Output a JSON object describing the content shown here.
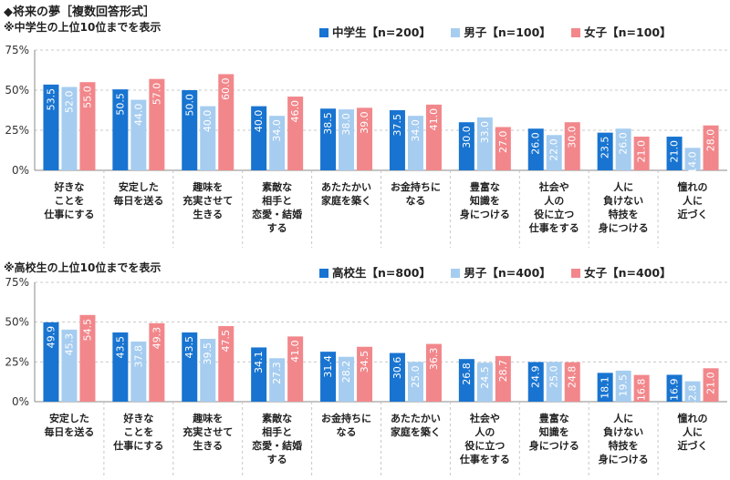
{
  "title": "◆将来の夢［複数回答形式］",
  "colors": {
    "series1": "#1874d0",
    "series2": "#a6cdf0",
    "series3": "#f2878b",
    "grid": "#c8c8c8"
  },
  "chart_data": [
    {
      "type": "bar",
      "subtitle": "※中学生の上位10位までを表示",
      "ylim": [
        0,
        75
      ],
      "yticks": [
        "0%",
        "25%",
        "50%",
        "75%"
      ],
      "legend": [
        "中学生【n=200】",
        "男子【n=100】",
        "女子【n=100】"
      ],
      "categories": [
        "好きな\nことを\n仕事にする",
        "安定した\n毎日を送る",
        "趣味を\n充実させて\n生きる",
        "素敵な\n相手と\n恋愛・結婚\nする",
        "あたたかい\n家庭を築く",
        "お金持ちに\nなる",
        "豊富な\n知識を\n身につける",
        "社会や\n人の\n役に立つ\n仕事をする",
        "人に\n負けない\n特技を\n身につける",
        "憧れの\n人に\n近づく"
      ],
      "series": [
        {
          "name": "中学生【n=200】",
          "values": [
            53.5,
            50.5,
            50.0,
            40.0,
            38.5,
            37.5,
            30.0,
            26.0,
            23.5,
            21.0
          ]
        },
        {
          "name": "男子【n=100】",
          "values": [
            52.0,
            44.0,
            40.0,
            34.0,
            38.0,
            34.0,
            33.0,
            22.0,
            26.0,
            14.0
          ]
        },
        {
          "name": "女子【n=100】",
          "values": [
            55.0,
            57.0,
            60.0,
            46.0,
            39.0,
            41.0,
            27.0,
            30.0,
            21.0,
            28.0
          ]
        }
      ]
    },
    {
      "type": "bar",
      "subtitle": "※高校生の上位10位までを表示",
      "ylim": [
        0,
        75
      ],
      "yticks": [
        "0%",
        "25%",
        "50%",
        "75%"
      ],
      "legend": [
        "高校生【n=800】",
        "男子【n=400】",
        "女子【n=400】"
      ],
      "categories": [
        "安定した\n毎日を送る",
        "好きな\nことを\n仕事にする",
        "趣味を\n充実させて\n生きる",
        "素敵な\n相手と\n恋愛・結婚\nする",
        "お金持ちに\nなる",
        "あたたかい\n家庭を築く",
        "社会や\n人の\n役に立つ\n仕事をする",
        "豊富な\n知識を\n身につける",
        "人に\n負けない\n特技を\n身につける",
        "憧れの\n人に\n近づく"
      ],
      "series": [
        {
          "name": "高校生【n=800】",
          "values": [
            49.9,
            43.5,
            43.5,
            34.1,
            31.4,
            30.6,
            26.8,
            24.9,
            18.1,
            16.9
          ]
        },
        {
          "name": "男子【n=400】",
          "values": [
            45.3,
            37.8,
            39.5,
            27.3,
            28.2,
            25.0,
            24.5,
            25.0,
            19.5,
            12.8
          ]
        },
        {
          "name": "女子【n=400】",
          "values": [
            54.5,
            49.3,
            47.5,
            41.0,
            34.5,
            36.3,
            28.7,
            24.8,
            16.8,
            21.0
          ]
        }
      ]
    }
  ]
}
